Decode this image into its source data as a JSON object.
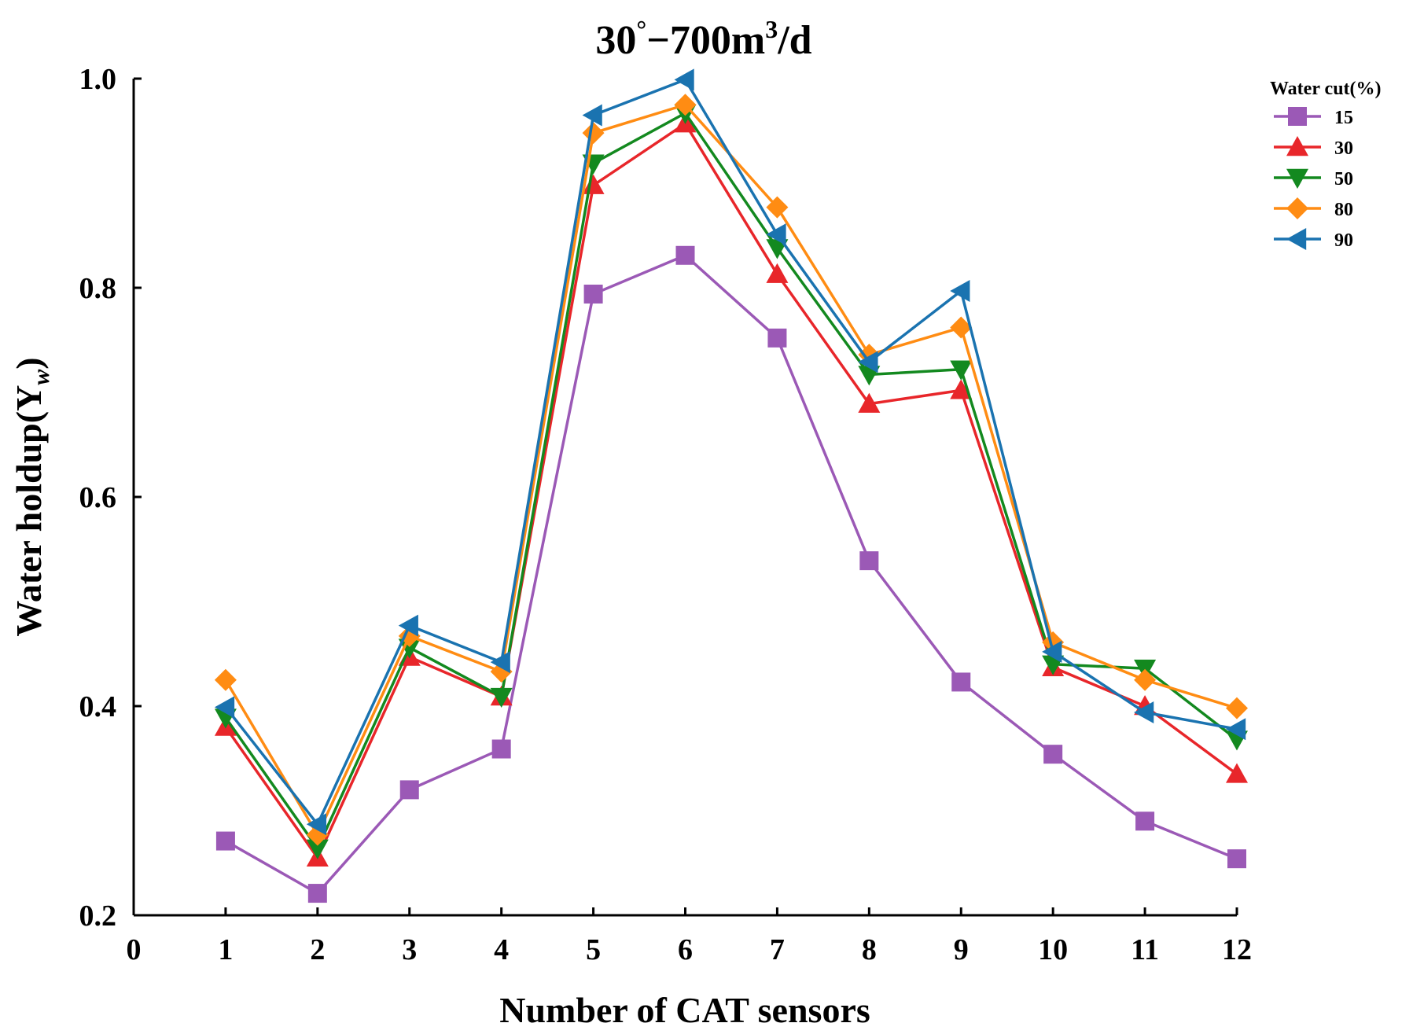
{
  "chart_data": {
    "type": "line",
    "title": "30°−700m³/d",
    "title_parts": {
      "angle": "30",
      "degree": "°",
      "sep": "−",
      "rate": "700m",
      "exp": "3",
      "unit": "/d"
    },
    "xlabel": "Number of CAT sensors",
    "ylabel": "Water holdup(Y",
    "ylabel_sub": "w",
    "ylabel_close": ")",
    "xlim": [
      0,
      12
    ],
    "ylim": [
      0.2,
      1.0
    ],
    "x_ticks": [
      "0",
      "1",
      "2",
      "3",
      "4",
      "5",
      "6",
      "7",
      "8",
      "9",
      "10",
      "11",
      "12"
    ],
    "y_ticks": [
      "0.2",
      "0.4",
      "0.6",
      "0.8",
      "1.0"
    ],
    "x": [
      1,
      2,
      3,
      4,
      5,
      6,
      7,
      8,
      9,
      10,
      11,
      12
    ],
    "legend_title": "Water cut(%)",
    "legend_position": "top-right",
    "series": [
      {
        "name": "15",
        "color": "#9b59b6",
        "marker": "square",
        "values": [
          0.271,
          0.221,
          0.32,
          0.359,
          0.794,
          0.831,
          0.752,
          0.539,
          0.423,
          0.354,
          0.29,
          0.254
        ]
      },
      {
        "name": "30",
        "color": "#e8262a",
        "marker": "triangle-up",
        "values": [
          0.38,
          0.255,
          0.447,
          0.409,
          0.898,
          0.957,
          0.813,
          0.689,
          0.702,
          0.437,
          0.4,
          0.335
        ]
      },
      {
        "name": "50",
        "color": "#13891f",
        "marker": "triangle-down",
        "values": [
          0.389,
          0.264,
          0.456,
          0.409,
          0.919,
          0.967,
          0.838,
          0.717,
          0.722,
          0.44,
          0.436,
          0.368
        ]
      },
      {
        "name": "80",
        "color": "#ff8c13",
        "marker": "diamond",
        "values": [
          0.425,
          0.277,
          0.467,
          0.433,
          0.948,
          0.975,
          0.877,
          0.736,
          0.762,
          0.461,
          0.425,
          0.398
        ]
      },
      {
        "name": "90",
        "color": "#1a73b0",
        "marker": "triangle-left",
        "values": [
          0.399,
          0.287,
          0.477,
          0.442,
          0.965,
          0.999,
          0.851,
          0.729,
          0.797,
          0.452,
          0.394,
          0.378
        ]
      }
    ]
  }
}
